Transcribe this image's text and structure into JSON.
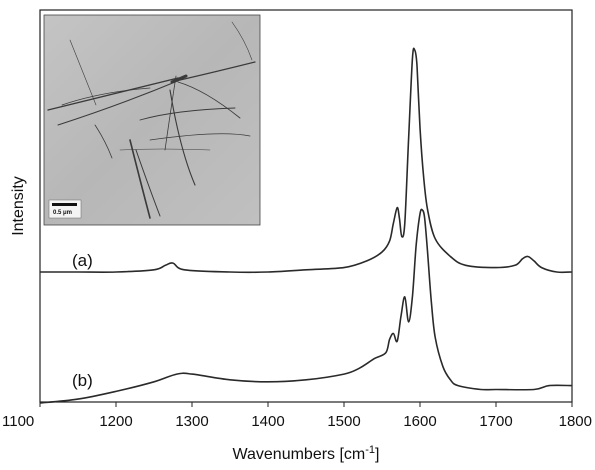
{
  "chart_data": {
    "type": "line",
    "xlabel": "Wavenumbers [cm",
    "xlabel_superscript": "-1",
    "xlabel_suffix": "]",
    "ylabel": "Intensity",
    "xlim": [
      1100,
      1800
    ],
    "x_ticks": [
      "1100",
      "1200",
      "1300",
      "1400",
      "1500",
      "1600",
      "1700",
      "1800"
    ],
    "grid": false,
    "line_color": "#2a2a2a",
    "series": [
      {
        "name": "(a)",
        "x": [
          1100,
          1150,
          1200,
          1250,
          1265,
          1275,
          1290,
          1350,
          1400,
          1450,
          1500,
          1530,
          1550,
          1560,
          1565,
          1570,
          1573,
          1576,
          1580,
          1585,
          1590,
          1593,
          1596,
          1600,
          1605,
          1610,
          1620,
          1640,
          1660,
          1700,
          1725,
          1735,
          1742,
          1750,
          1760,
          1780,
          1800
        ],
        "values": [
          0.0,
          0.0,
          0.0,
          0.01,
          0.03,
          0.04,
          0.01,
          0.0,
          0.0,
          0.01,
          0.02,
          0.05,
          0.09,
          0.14,
          0.22,
          0.29,
          0.24,
          0.16,
          0.22,
          0.6,
          0.96,
          1.0,
          0.93,
          0.65,
          0.42,
          0.28,
          0.15,
          0.07,
          0.03,
          0.02,
          0.03,
          0.06,
          0.07,
          0.05,
          0.02,
          0.0,
          0.0
        ]
      },
      {
        "name": "(b)",
        "x": [
          1100,
          1150,
          1200,
          1250,
          1280,
          1300,
          1350,
          1400,
          1450,
          1500,
          1520,
          1540,
          1555,
          1560,
          1565,
          1570,
          1575,
          1580,
          1585,
          1590,
          1595,
          1600,
          1603,
          1606,
          1610,
          1615,
          1620,
          1630,
          1640,
          1650,
          1680,
          1700,
          1750,
          1770,
          1800
        ],
        "values": [
          0.0,
          0.02,
          0.06,
          0.11,
          0.15,
          0.15,
          0.12,
          0.11,
          0.12,
          0.15,
          0.18,
          0.23,
          0.26,
          0.33,
          0.36,
          0.32,
          0.45,
          0.55,
          0.42,
          0.55,
          0.82,
          0.98,
          1.0,
          0.96,
          0.78,
          0.52,
          0.34,
          0.19,
          0.12,
          0.09,
          0.07,
          0.07,
          0.07,
          0.09,
          0.09
        ]
      }
    ]
  },
  "inset": {
    "scale_bar_label": "0.5 μm"
  }
}
